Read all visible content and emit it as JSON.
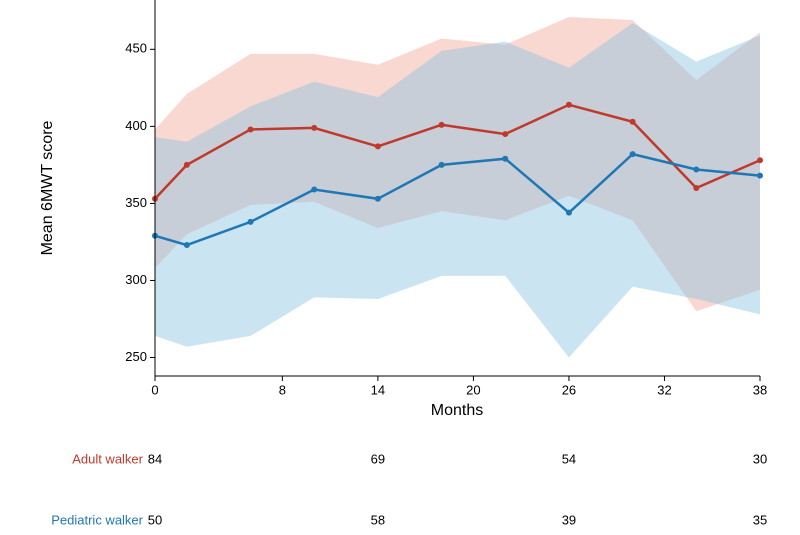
{
  "chart_data": {
    "type": "line",
    "x_label": "Months",
    "y_label": "Mean 6MWT score",
    "x": [
      0,
      2,
      6,
      10,
      14,
      18,
      22,
      26,
      30,
      34,
      38
    ],
    "series": [
      {
        "name": "Adult walker",
        "color": "#c0392b",
        "band_color": "#f0a898",
        "values": [
          353,
          375,
          398,
          399,
          387,
          401,
          395,
          414,
          403,
          360,
          378
        ],
        "upper": [
          398,
          421,
          447,
          447,
          440,
          457,
          453,
          471,
          469,
          430,
          461
        ],
        "lower": [
          308,
          330,
          349,
          351,
          334,
          345,
          339,
          355,
          339,
          280,
          294
        ]
      },
      {
        "name": "Pediatric walker",
        "color": "#1f77b4",
        "band_color": "#8cc3e0",
        "values": [
          329,
          323,
          338,
          359,
          353,
          375,
          379,
          344,
          382,
          372,
          368
        ],
        "upper": [
          393,
          390,
          413,
          429,
          419,
          449,
          455,
          438,
          467,
          442,
          459
        ],
        "lower": [
          264,
          257,
          264,
          289,
          288,
          303,
          303,
          250,
          296,
          288,
          278
        ]
      }
    ],
    "xlim": [
      0,
      38
    ],
    "xticks": [
      0,
      8,
      14,
      20,
      26,
      32,
      38
    ],
    "ylim": [
      238,
      482
    ],
    "yticks": [
      250,
      300,
      350,
      400,
      450
    ],
    "grid": false,
    "risk_table": {
      "x": [
        0,
        14,
        26,
        38
      ],
      "rows": [
        {
          "name": "Adult walker",
          "color": "#c0392b",
          "values": [
            84,
            69,
            54,
            30
          ]
        },
        {
          "name": "Pediatric walker",
          "color": "#1f77b4",
          "values": [
            50,
            58,
            39,
            35
          ]
        }
      ]
    }
  }
}
